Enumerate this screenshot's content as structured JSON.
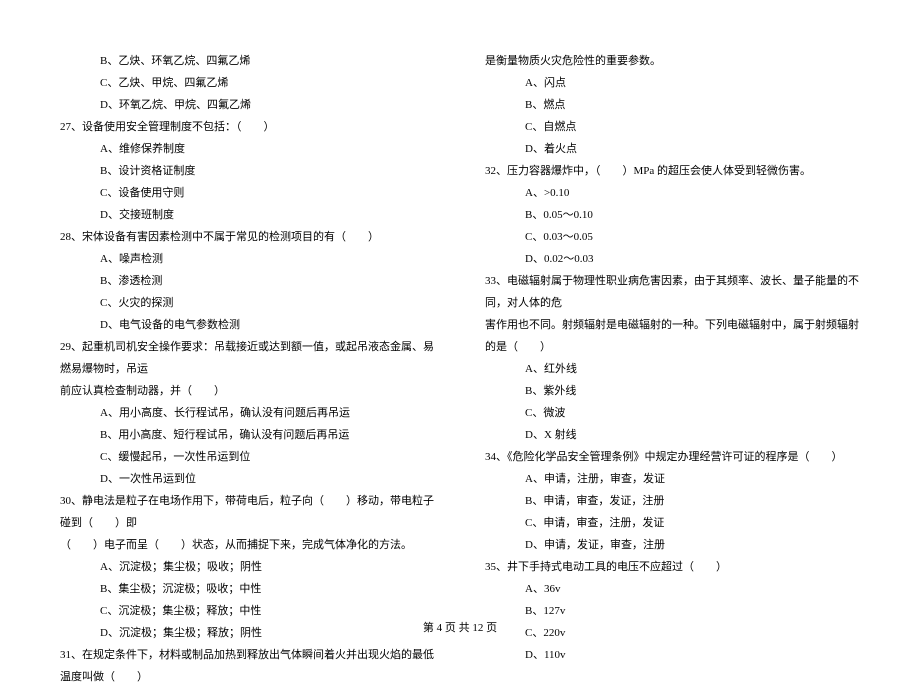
{
  "left": {
    "opts26": [
      "B、乙炔、环氧乙烷、四氟乙烯",
      "C、乙炔、甲烷、四氟乙烯",
      "D、环氧乙烷、甲烷、四氟乙烯"
    ],
    "q27": "27、设备使用安全管理制度不包括：（　　）",
    "opts27": [
      "A、维修保养制度",
      "B、设计资格证制度",
      "C、设备使用守则",
      "D、交接班制度"
    ],
    "q28": "28、宋体设备有害因素检测中不属于常见的检测项目的有（　　）",
    "opts28": [
      "A、噪声检测",
      "B、渗透检测",
      "C、火灾的探测",
      "D、电气设备的电气参数检测"
    ],
    "q29a": "29、起重机司机安全操作要求：吊载接近或达到额一值，或起吊液态金属、易燃易爆物时，吊运",
    "q29b": "前应认真检查制动器，并（　　）",
    "opts29": [
      "A、用小高度、长行程试吊，确认没有问题后再吊运",
      "B、用小高度、短行程试吊，确认没有问题后再吊运",
      "C、缓慢起吊，一次性吊运到位",
      "D、一次性吊运到位"
    ],
    "q30a": "30、静电法是粒子在电场作用下，带荷电后，粒子向（　　）移动，带电粒子碰到（　　）即",
    "q30b": "（　　）电子而呈（　　）状态，从而捕捉下来，完成气体净化的方法。",
    "opts30": [
      "A、沉淀极；集尘极；吸收；阴性",
      "B、集尘极；沉淀极；吸收；中性",
      "C、沉淀极；集尘极；释放；中性",
      "D、沉淀极；集尘极；释放；阴性"
    ],
    "q31": "31、在规定条件下，材料或制品加热到释放出气体瞬间着火并出现火焰的最低温度叫做（　　）"
  },
  "right": {
    "q31b": "是衡量物质火灾危险性的重要参数。",
    "opts31": [
      "A、闪点",
      "B、燃点",
      "C、自燃点",
      "D、着火点"
    ],
    "q32": "32、压力容器爆炸中，（　　）MPa 的超压会使人体受到轻微伤害。",
    "opts32": [
      "A、>0.10",
      "B、0.05～0.10",
      "C、0.03～0.05",
      "D、0.02～0.03"
    ],
    "q33a": "33、电磁辐射属于物理性职业病危害因素，由于其频率、波长、量子能量的不同，对人体的危",
    "q33b": "害作用也不同。射频辐射是电磁辐射的一种。下列电磁辐射中，属于射频辐射的是（　　）",
    "opts33": [
      "A、红外线",
      "B、紫外线",
      "C、微波",
      "D、X 射线"
    ],
    "q34": "34、《危险化学品安全管理条例》中规定办理经营许可证的程序是（　　）",
    "opts34": [
      "A、申请，注册，审查，发证",
      "B、申请，审查，发证，注册",
      "C、申请，审查，注册，发证",
      "D、申请，发证，审查，注册"
    ],
    "q35": "35、井下手持式电动工具的电压不应超过（　　）",
    "opts35": [
      "A、36v",
      "B、127v",
      "C、220v",
      "D、110v"
    ]
  },
  "footer": "第 4 页 共 12 页"
}
